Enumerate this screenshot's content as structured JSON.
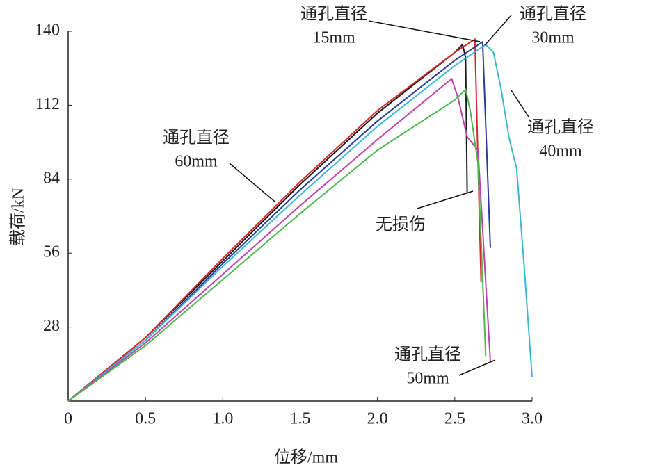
{
  "chart_data": {
    "type": "line",
    "x_label": "位移/mm",
    "y_label": "载荷/kN",
    "xlim": [
      0,
      3.0
    ],
    "ylim": [
      0,
      140
    ],
    "xticks": [
      0,
      0.5,
      {
        "value": 1.0,
        "label": "1.0"
      },
      1.5,
      {
        "value": 2.0,
        "label": "2.0"
      },
      2.5,
      {
        "value": 3.0,
        "label": "3.0"
      }
    ],
    "yticks": [
      28,
      56,
      84,
      112,
      140
    ],
    "series": [
      {
        "name": [
          "无损伤"
        ],
        "color": "#1a1a1a",
        "x": [
          0,
          0.5,
          1.0,
          1.5,
          2.0,
          2.5,
          2.55,
          2.57,
          2.58
        ],
        "values": [
          0,
          24,
          53,
          82,
          109,
          132,
          135,
          130,
          79
        ]
      },
      {
        "name": [
          "通孔直径",
          "15mm"
        ],
        "color": "#d42a2a",
        "x": [
          0,
          0.5,
          1.0,
          1.5,
          2.0,
          2.5,
          2.63,
          2.67
        ],
        "values": [
          0,
          24,
          54,
          83,
          110,
          132,
          137,
          45
        ]
      },
      {
        "name": [
          "通孔直径",
          "30mm"
        ],
        "color": "#2a3a9a",
        "x": [
          0,
          0.5,
          1.0,
          1.5,
          2.0,
          2.5,
          2.68,
          2.73
        ],
        "values": [
          0,
          23,
          52,
          80,
          106,
          129,
          136,
          58
        ]
      },
      {
        "name": [
          "通孔直径",
          "40mm"
        ],
        "color": "#3bb8d0",
        "x": [
          0,
          0.5,
          1.0,
          1.5,
          2.0,
          2.5,
          2.7,
          2.75,
          2.8,
          2.85,
          2.9,
          2.95,
          3.0
        ],
        "values": [
          0,
          23,
          51,
          78,
          104,
          127,
          135,
          132,
          118,
          100,
          88,
          50,
          9
        ]
      },
      {
        "name": [
          "通孔直径",
          "50mm"
        ],
        "color": "#c040b0",
        "x": [
          0,
          0.5,
          1.0,
          1.5,
          2.0,
          2.48,
          2.52,
          2.58,
          2.65,
          2.73
        ],
        "values": [
          0,
          22,
          48,
          74,
          99,
          122,
          115,
          100,
          95,
          15
        ]
      },
      {
        "name": [
          "通孔直径",
          "60mm"
        ],
        "color": "#4cb84c",
        "x": [
          0,
          0.5,
          1.0,
          1.5,
          2.0,
          2.5,
          2.57,
          2.6,
          2.65,
          2.7
        ],
        "values": [
          0,
          21,
          46,
          71,
          95,
          114,
          118,
          110,
          90,
          17
        ]
      }
    ]
  }
}
